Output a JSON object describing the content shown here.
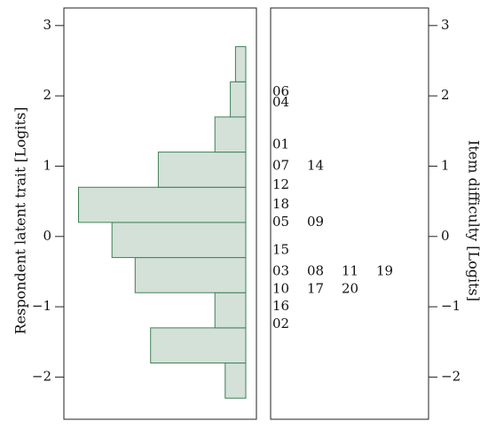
{
  "chart_data": {
    "type": "bar",
    "ylim": [
      -2.6,
      3.25
    ],
    "yticks": [
      -2,
      -1,
      0,
      1,
      2,
      3
    ],
    "ytick_labels": [
      "−2",
      "−1",
      "0",
      "1",
      "2",
      "3"
    ],
    "ylabel_left": "Respondent latent trait [Logits]",
    "ylabel_right": "Item difficulty [Logits]",
    "grid": false,
    "colors": {
      "bar_fill": "#d3e1d8",
      "bar_stroke": "#3f7f56",
      "frame": "#222222"
    },
    "person_bins": [
      {
        "lo": -2.3,
        "hi": -1.8,
        "value": 0.8
      },
      {
        "lo": -1.8,
        "hi": -1.3,
        "value": 3.7
      },
      {
        "lo": -1.3,
        "hi": -0.8,
        "value": 1.2
      },
      {
        "lo": -0.8,
        "hi": -0.3,
        "value": 4.3
      },
      {
        "lo": -0.3,
        "hi": 0.2,
        "value": 5.2
      },
      {
        "lo": 0.2,
        "hi": 0.7,
        "value": 6.5
      },
      {
        "lo": 0.7,
        "hi": 1.2,
        "value": 3.4
      },
      {
        "lo": 1.2,
        "hi": 1.7,
        "value": 1.2
      },
      {
        "lo": 1.7,
        "hi": 2.2,
        "value": 0.6
      },
      {
        "lo": 2.2,
        "hi": 2.7,
        "value": 0.4
      }
    ],
    "items": [
      {
        "y": 2.05,
        "labels": [
          "06"
        ]
      },
      {
        "y": 1.9,
        "labels": [
          "04"
        ]
      },
      {
        "y": 1.3,
        "labels": [
          "01"
        ]
      },
      {
        "y": 1.0,
        "labels": [
          "07",
          "14"
        ]
      },
      {
        "y": 0.73,
        "labels": [
          "12"
        ]
      },
      {
        "y": 0.45,
        "labels": [
          "18"
        ]
      },
      {
        "y": 0.2,
        "labels": [
          "05",
          "09"
        ]
      },
      {
        "y": -0.2,
        "labels": [
          "15"
        ]
      },
      {
        "y": -0.5,
        "labels": [
          "03",
          "08",
          "11",
          "19"
        ]
      },
      {
        "y": -0.75,
        "labels": [
          "10",
          "17",
          "20"
        ]
      },
      {
        "y": -1.0,
        "labels": [
          "16"
        ]
      },
      {
        "y": -1.25,
        "labels": [
          "02"
        ]
      }
    ]
  }
}
